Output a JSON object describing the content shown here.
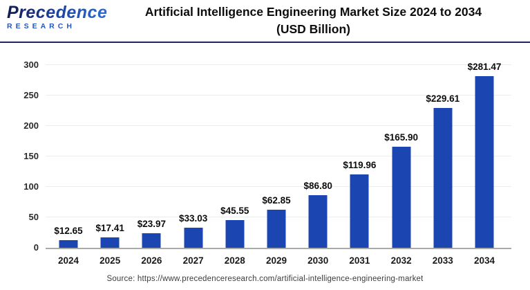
{
  "header": {
    "logo_brand": "Precedence",
    "logo_sub": "RESEARCH",
    "title_line1": "Artificial Intelligence Engineering Market Size 2024 to 2034",
    "title_line2": "(USD Billion)"
  },
  "chart_data": {
    "type": "bar",
    "title": "Artificial Intelligence Engineering Market Size 2024 to 2034 (USD Billion)",
    "categories": [
      "2024",
      "2025",
      "2026",
      "2027",
      "2028",
      "2029",
      "2030",
      "2031",
      "2032",
      "2033",
      "2034"
    ],
    "values": [
      12.65,
      17.41,
      23.97,
      33.03,
      45.55,
      62.85,
      86.8,
      119.96,
      165.9,
      229.61,
      281.47
    ],
    "value_labels": [
      "$12.65",
      "$17.41",
      "$23.97",
      "$33.03",
      "$45.55",
      "$62.85",
      "$86.80",
      "$119.96",
      "$165.90",
      "$229.61",
      "$281.47"
    ],
    "xlabel": "",
    "ylabel": "",
    "ylim": [
      0,
      300
    ],
    "yticks": [
      0,
      50,
      100,
      150,
      200,
      250,
      300
    ],
    "grid": true,
    "legend": "none",
    "bar_color": "#1b46b1",
    "unit": "USD Billion"
  },
  "footer": {
    "source": "Source: https://www.precedenceresearch.com/artificial-intelligence-engineering-market"
  }
}
